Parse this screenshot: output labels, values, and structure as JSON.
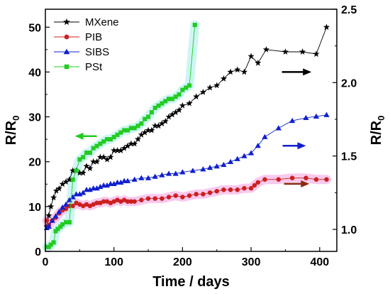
{
  "chart_data": {
    "type": "scatter",
    "xlabel": "Time / days",
    "ylabel_left": "R/R",
    "ylabel_left_sub": "0",
    "ylabel_right": "R/R",
    "ylabel_right_sub": "0",
    "xlim": [
      0,
      425
    ],
    "ylim_left": [
      0,
      54
    ],
    "ylim_right": [
      0.85,
      2.5
    ],
    "x_ticks": [
      0,
      100,
      200,
      300,
      400
    ],
    "y_left_ticks": [
      0,
      10,
      20,
      30,
      40,
      50
    ],
    "y_right_ticks": [
      1.0,
      1.5,
      2.0,
      2.5
    ],
    "y_right_tick_labels": [
      "1.0",
      "1.5",
      "2.0",
      "2.5"
    ],
    "legend_position": "top-left",
    "series": [
      {
        "name": "MXene",
        "axis": "left",
        "color": "#000000",
        "marker": "star",
        "x": [
          2,
          5,
          8,
          12,
          16,
          20,
          25,
          30,
          35,
          40,
          45,
          50,
          55,
          60,
          65,
          70,
          75,
          80,
          85,
          90,
          95,
          100,
          105,
          110,
          115,
          120,
          125,
          130,
          135,
          140,
          145,
          150,
          155,
          160,
          165,
          170,
          175,
          180,
          185,
          190,
          195,
          200,
          210,
          220,
          230,
          240,
          250,
          260,
          270,
          280,
          290,
          300,
          310,
          322,
          350,
          375,
          395,
          410
        ],
        "y": [
          5.5,
          8,
          10,
          12,
          13.5,
          14,
          15,
          15.5,
          16,
          18,
          18,
          17.5,
          17.5,
          19,
          18.5,
          20,
          20,
          21,
          21,
          20.5,
          21,
          22.5,
          22.5,
          22.5,
          23,
          23.5,
          24,
          24,
          25,
          26,
          26.5,
          27,
          27,
          28,
          28,
          28.5,
          29,
          30,
          30.5,
          31,
          31.5,
          32.5,
          33,
          34.5,
          35.5,
          36.5,
          37,
          38.5,
          40,
          40.5,
          40,
          43.5,
          42,
          45,
          44.5,
          44.5,
          44,
          50
        ]
      },
      {
        "name": "PIB",
        "axis": "right",
        "color": "#cc2020",
        "marker": "circle",
        "x": [
          2,
          5,
          10,
          15,
          20,
          25,
          30,
          35,
          40,
          45,
          50,
          55,
          60,
          65,
          70,
          75,
          80,
          85,
          90,
          95,
          100,
          105,
          110,
          115,
          120,
          125,
          130,
          140,
          150,
          160,
          170,
          180,
          190,
          200,
          210,
          220,
          230,
          240,
          250,
          260,
          270,
          280,
          290,
          300,
          305,
          310,
          320,
          340,
          360,
          380,
          395,
          410
        ],
        "y": [
          1.06,
          1.03,
          1.06,
          1.08,
          1.11,
          1.13,
          1.14,
          1.16,
          1.16,
          1.18,
          1.17,
          1.16,
          1.17,
          1.16,
          1.17,
          1.18,
          1.18,
          1.19,
          1.19,
          1.18,
          1.19,
          1.2,
          1.19,
          1.2,
          1.19,
          1.19,
          1.19,
          1.2,
          1.21,
          1.21,
          1.21,
          1.22,
          1.23,
          1.22,
          1.23,
          1.24,
          1.24,
          1.25,
          1.26,
          1.27,
          1.27,
          1.27,
          1.28,
          1.28,
          1.3,
          1.32,
          1.34,
          1.34,
          1.35,
          1.35,
          1.34,
          1.34
        ]
      },
      {
        "name": "SIBS",
        "axis": "right",
        "color": "#1020cc",
        "marker": "triangle",
        "x": [
          2,
          5,
          10,
          15,
          20,
          25,
          30,
          35,
          40,
          45,
          50,
          55,
          60,
          65,
          70,
          75,
          80,
          85,
          90,
          95,
          100,
          105,
          110,
          115,
          120,
          130,
          140,
          150,
          160,
          170,
          180,
          190,
          200,
          215,
          230,
          240,
          250,
          260,
          270,
          280,
          290,
          300,
          310,
          320,
          340,
          360,
          380,
          395,
          410
        ],
        "y": [
          1.01,
          1.02,
          1.06,
          1.09,
          1.12,
          1.15,
          1.17,
          1.2,
          1.22,
          1.24,
          1.24,
          1.25,
          1.27,
          1.27,
          1.28,
          1.28,
          1.29,
          1.3,
          1.3,
          1.31,
          1.31,
          1.32,
          1.32,
          1.33,
          1.33,
          1.34,
          1.35,
          1.35,
          1.36,
          1.37,
          1.38,
          1.38,
          1.39,
          1.4,
          1.41,
          1.42,
          1.43,
          1.44,
          1.46,
          1.48,
          1.5,
          1.52,
          1.57,
          1.63,
          1.69,
          1.74,
          1.76,
          1.77,
          1.78
        ]
      },
      {
        "name": "PSt",
        "axis": "left",
        "color": "#22cc22",
        "marker": "square",
        "x": [
          2,
          5,
          8,
          12,
          15,
          18,
          22,
          25,
          30,
          35,
          40,
          45,
          50,
          55,
          60,
          65,
          70,
          75,
          80,
          85,
          90,
          95,
          100,
          105,
          110,
          115,
          120,
          125,
          130,
          135,
          140,
          145,
          150,
          155,
          160,
          165,
          170,
          175,
          180,
          185,
          190,
          195,
          200,
          205,
          210,
          218
        ],
        "y": [
          1,
          1,
          1.5,
          2,
          4.5,
          5,
          5.5,
          6,
          6.5,
          6.5,
          16,
          18,
          20.5,
          21,
          22,
          22,
          23,
          23.5,
          24,
          24.5,
          25,
          25,
          25.5,
          26,
          26.5,
          27,
          27,
          27.5,
          27.5,
          28,
          28.5,
          29.5,
          30,
          31,
          32,
          32.5,
          33,
          33.5,
          34,
          34,
          34.5,
          35,
          36,
          36.5,
          37,
          50.5
        ]
      }
    ],
    "arrows": [
      {
        "name": "mxene-arrow",
        "color": "#000000",
        "direction": "right",
        "x": [
          345,
          388
        ],
        "y_axis": "left",
        "y": 40
      },
      {
        "name": "pst-arrow",
        "color": "#22cc22",
        "direction": "left",
        "x": [
          43,
          75
        ],
        "y_axis": "left",
        "y": 25.7
      },
      {
        "name": "sibs-arrow",
        "color": "#1020cc",
        "direction": "right",
        "x": [
          346,
          380
        ],
        "y_axis": "right",
        "y": 1.57
      },
      {
        "name": "pib-arrow",
        "color": "#8b2a10",
        "direction": "right",
        "x": [
          348,
          385
        ],
        "y_axis": "right",
        "y": 1.31
      }
    ]
  }
}
